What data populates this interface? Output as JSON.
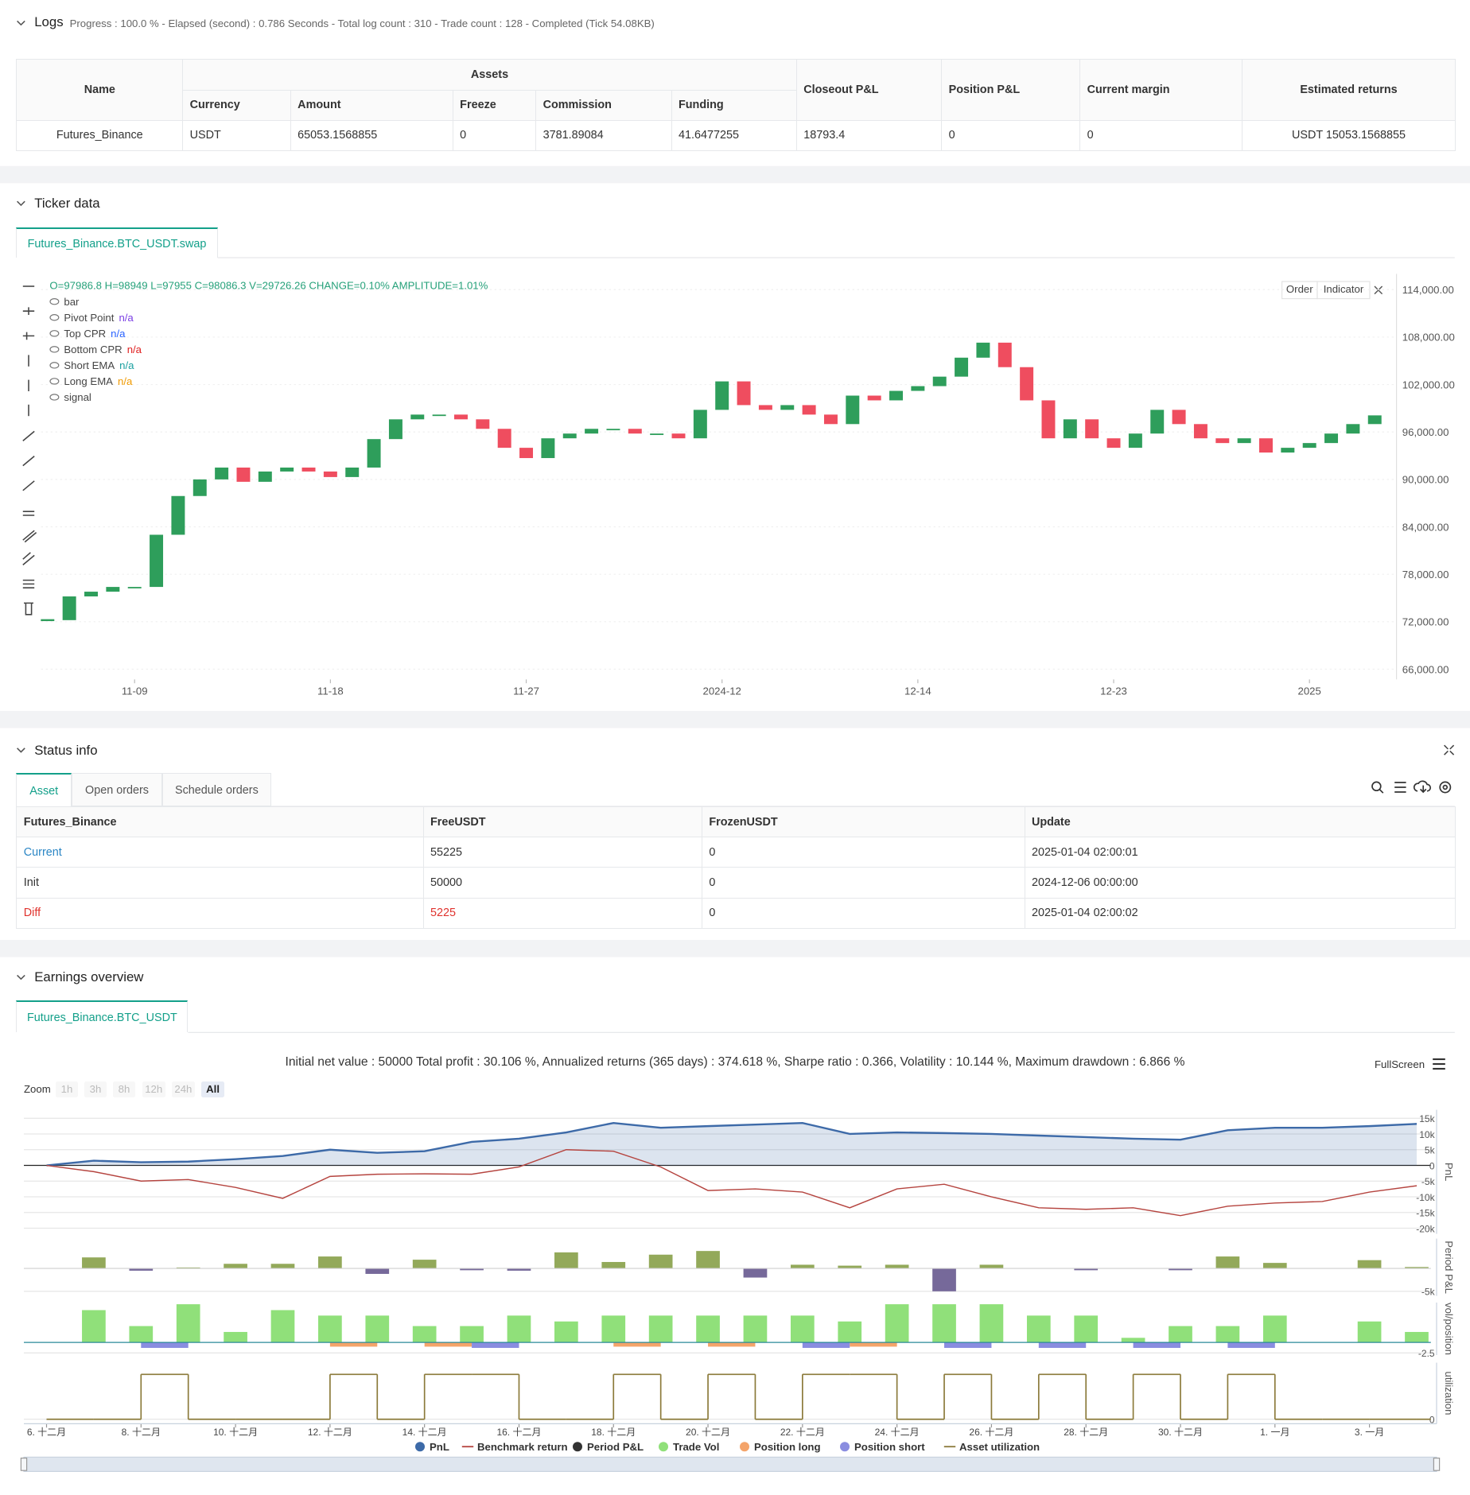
{
  "logs": {
    "title": "Logs",
    "status": "Progress : 100.0 % - Elapsed (second) : 0.786 Seconds - Total log count : 310 - Trade count : 128 - Completed (Tick 54.08KB)",
    "table": {
      "name": "Name",
      "group": "Assets",
      "columns": [
        "Currency",
        "Amount",
        "Freeze",
        "Commission",
        "Funding"
      ],
      "other": [
        "Closeout P&L",
        "Position P&L",
        "Current margin",
        "Estimated returns"
      ],
      "rows": [
        [
          "Futures_Binance",
          "USDT",
          "65053.1568855",
          "0",
          "3781.89084",
          "41.6477255",
          "18793.4",
          "0",
          "0",
          "USDT 15053.1568855"
        ]
      ]
    }
  },
  "ticker": {
    "title": "Ticker data",
    "tab": "Futures_Binance.BTC_USDT.swap",
    "buttons": [
      "Order",
      "Indicator"
    ]
  },
  "status": {
    "title": "Status info",
    "tabs": [
      "Asset",
      "Open orders",
      "Schedule orders"
    ],
    "table": {
      "headers": [
        "Futures_Binance",
        "FreeUSDT",
        "FrozenUSDT",
        "Update"
      ],
      "rows": [
        [
          "Current",
          "55225",
          "0",
          "2025-01-04 02:00:01"
        ],
        [
          "Init",
          "50000",
          "0",
          "2024-12-06 00:00:00"
        ],
        [
          "Diff",
          "5225",
          "0",
          "2025-01-04 02:00:02"
        ]
      ]
    }
  },
  "earnings": {
    "title": "Earnings overview",
    "tab": "Futures_Binance.BTC_USDT",
    "summary": "Initial net value : 50000 Total profit : 30.106 %, Annualized returns (365 days) : 374.618 %, Sharpe ratio : 0.366, Volatility : 10.144 %, Maximum drawdown : 6.866 %",
    "fullscreen": "FullScreen",
    "zoom_label": "Zoom",
    "zoom_buttons": [
      "1h",
      "3h",
      "8h",
      "12h",
      "24h",
      "All"
    ]
  },
  "chart_data": [
    {
      "type": "candlestick",
      "info": "O=97986.8 H=98949 L=97955 C=98086.3 V=29726.26 CHANGE=0.10% AMPLITUDE=1.01%",
      "indicators": [
        {
          "name": "bar"
        },
        {
          "name": "Pivot Point",
          "value": "n/a",
          "color": "#7b3fe4"
        },
        {
          "name": "Top CPR",
          "value": "n/a",
          "color": "#2962ff"
        },
        {
          "name": "Bottom CPR",
          "value": "n/a",
          "color": "#e02020"
        },
        {
          "name": "Short EMA",
          "value": "n/a",
          "color": "#1aa0a0"
        },
        {
          "name": "Long EMA",
          "value": "n/a",
          "color": "#f09a00"
        },
        {
          "name": "signal"
        }
      ],
      "values": [
        72200,
        75200,
        75800,
        76400,
        76400,
        83000,
        87900,
        90000,
        91500,
        89700,
        91000,
        91500,
        91000,
        90300,
        91500,
        95100,
        97600,
        98200,
        98200,
        97600,
        96400,
        94000,
        92700,
        95200,
        95800,
        96400,
        96400,
        95800,
        95800,
        95200,
        98800,
        102400,
        99400,
        98800,
        99400,
        98200,
        97000,
        100600,
        100000,
        101200,
        101800,
        103000,
        105400,
        107300,
        104200,
        100000,
        95200,
        97600,
        95200,
        94000,
        95800,
        98800,
        97000,
        95200,
        94600,
        95200,
        93400,
        94000,
        94600,
        95800,
        97000,
        98100
      ],
      "up_color": "#2e9e5b",
      "down_color": "#ef4d5f",
      "ylim": [
        64700,
        116000
      ],
      "yticks": [
        {
          "value": 66000,
          "label": "66,000.00"
        },
        {
          "value": 72000,
          "label": "72,000.00"
        },
        {
          "value": 78000,
          "label": "78,000.00"
        },
        {
          "value": 84000,
          "label": "84,000.00"
        },
        {
          "value": 90000,
          "label": "90,000.00"
        },
        {
          "value": 96000,
          "label": "96,000.00"
        },
        {
          "value": 102000,
          "label": "102,000.00"
        },
        {
          "value": 108000,
          "label": "108,000.00"
        },
        {
          "value": 114000,
          "label": "114,000.00"
        }
      ],
      "xlim": [
        -0.3,
        62
      ],
      "xticks": [
        {
          "value": 4,
          "label": "11-09"
        },
        {
          "value": 13,
          "label": "11-18"
        },
        {
          "value": 22,
          "label": "11-27"
        },
        {
          "value": 31,
          "label": "2024-12"
        },
        {
          "value": 40,
          "label": "12-14"
        },
        {
          "value": 49,
          "label": "12-23"
        },
        {
          "value": 58,
          "label": "2025"
        }
      ]
    },
    {
      "type": "line",
      "axis_label": "PnL",
      "series": [
        {
          "name": "PnL",
          "color": "#3d6aa8",
          "values": [
            0,
            1500,
            1000,
            1200,
            2000,
            3000,
            5000,
            4000,
            4500,
            7500,
            8500,
            10500,
            13500,
            12000,
            12500,
            13000,
            13500,
            10000,
            10500,
            10300,
            10000,
            9500,
            9000,
            8500,
            8200,
            11200,
            12000,
            12000,
            12500,
            13200
          ]
        },
        {
          "name": "Benchmark return",
          "color": "#b5443f",
          "values": [
            0,
            -2000,
            -5000,
            -4500,
            -7000,
            -10500,
            -3500,
            -2800,
            -2700,
            -2800,
            -500,
            5000,
            4500,
            -500,
            -8000,
            -7500,
            -8500,
            -13500,
            -7500,
            -6000,
            -10000,
            -13500,
            -14000,
            -13500,
            -16000,
            -13000,
            -12000,
            -11500,
            -8500,
            -6500
          ]
        }
      ],
      "ylim": [
        -21800,
        17700
      ],
      "yticks": [
        {
          "value": 15000,
          "label": "15k"
        },
        {
          "value": 10000,
          "label": "10k"
        },
        {
          "value": 5000,
          "label": "5k"
        },
        0,
        {
          "value": -5000,
          "label": "-5k"
        },
        {
          "value": -10000,
          "label": "-10k"
        },
        {
          "value": -15000,
          "label": "-15k"
        },
        {
          "value": -20000,
          "label": "-20k"
        }
      ],
      "xlim": [
        -0.48,
        29.3
      ],
      "xticks": [
        {
          "value": 0,
          "label": "6. 十二月"
        },
        {
          "value": 2,
          "label": "8. 十二月"
        },
        {
          "value": 4,
          "label": "10. 十二月"
        },
        {
          "value": 6,
          "label": "12. 十二月"
        },
        {
          "value": 8,
          "label": "14. 十二月"
        },
        {
          "value": 10,
          "label": "16. 十二月"
        },
        {
          "value": 12,
          "label": "18. 十二月"
        },
        {
          "value": 14,
          "label": "20. 十二月"
        },
        {
          "value": 16,
          "label": "22. 十二月"
        },
        {
          "value": 18,
          "label": "24. 十二月"
        },
        {
          "value": 20,
          "label": "26. 十二月"
        },
        {
          "value": 22,
          "label": "28. 十二月"
        },
        {
          "value": 24,
          "label": "30. 十二月"
        },
        {
          "value": 26,
          "label": "1. 一月"
        },
        {
          "value": 28,
          "label": "3. 一月"
        }
      ]
    },
    {
      "type": "bar",
      "axis_label": "Period P&L",
      "series": [
        {
          "name": "Period P&L",
          "color": "#93a95a",
          "negative_color": "#76699a",
          "legend_color": "#333333",
          "values": [
            null,
            2400,
            -500,
            200,
            1000,
            1000,
            2600,
            -1200,
            1900,
            -400,
            -500,
            3500,
            1400,
            3000,
            3800,
            -2000,
            800,
            600,
            800,
            -5000,
            800,
            null,
            -400,
            null,
            -400,
            2600,
            1200,
            null,
            1800,
            300
          ]
        }
      ],
      "ylim": [
        -6000,
        6500
      ],
      "yticks": [
        {
          "value": -5000,
          "label": "-5k"
        }
      ],
      "xlim": [
        -0.48,
        29.3
      ]
    },
    {
      "type": "bar",
      "axis_label": "vol/position",
      "series": [
        {
          "name": "Trade Vol",
          "color": "#90e07a",
          "values": [
            null,
            7.7,
            3.9,
            9.1,
            2.5,
            7.7,
            6.4,
            6.4,
            3.9,
            3.9,
            6.4,
            5,
            6.4,
            6.4,
            6.4,
            6.4,
            6.4,
            5,
            9.1,
            9.1,
            9.1,
            6.4,
            6.4,
            1.1,
            3.9,
            3.9,
            6.4,
            null,
            5,
            2.5
          ]
        },
        {
          "name": "Position long",
          "color": "#f4a46a",
          "values": [
            null,
            null,
            null,
            null,
            null,
            null,
            -1,
            null,
            -1,
            null,
            null,
            null,
            -1,
            null,
            -1,
            null,
            null,
            -1,
            null,
            null,
            null,
            null,
            null,
            null,
            null,
            null,
            null,
            null,
            null,
            null
          ]
        },
        {
          "name": "Position short",
          "color": "#8a8de0",
          "values": [
            null,
            null,
            -1.3,
            null,
            null,
            null,
            null,
            null,
            null,
            -1.3,
            null,
            null,
            null,
            null,
            null,
            null,
            -1.3,
            null,
            null,
            -1.3,
            null,
            -1.3,
            null,
            -1.3,
            null,
            -1.3,
            null,
            null,
            null,
            null
          ]
        }
      ],
      "ylim": [
        -3,
        9.5
      ],
      "yticks": [
        -2.5
      ],
      "xlim": [
        -0.48,
        29.3
      ]
    },
    {
      "type": "step",
      "axis_label": "utilization",
      "series": [
        {
          "name": "Asset utilization",
          "color": "#8b7a3a",
          "values": [
            0,
            0,
            1,
            0,
            0,
            0,
            1,
            0,
            1,
            1,
            0,
            0,
            1,
            0,
            1,
            0,
            1,
            1,
            0,
            1,
            0,
            1,
            0,
            1,
            0,
            1,
            0,
            0,
            0,
            0
          ]
        }
      ],
      "ylim": [
        -0.1,
        1.26
      ],
      "yticks": [
        0
      ],
      "xlim": [
        -0.48,
        29.3
      ]
    }
  ]
}
